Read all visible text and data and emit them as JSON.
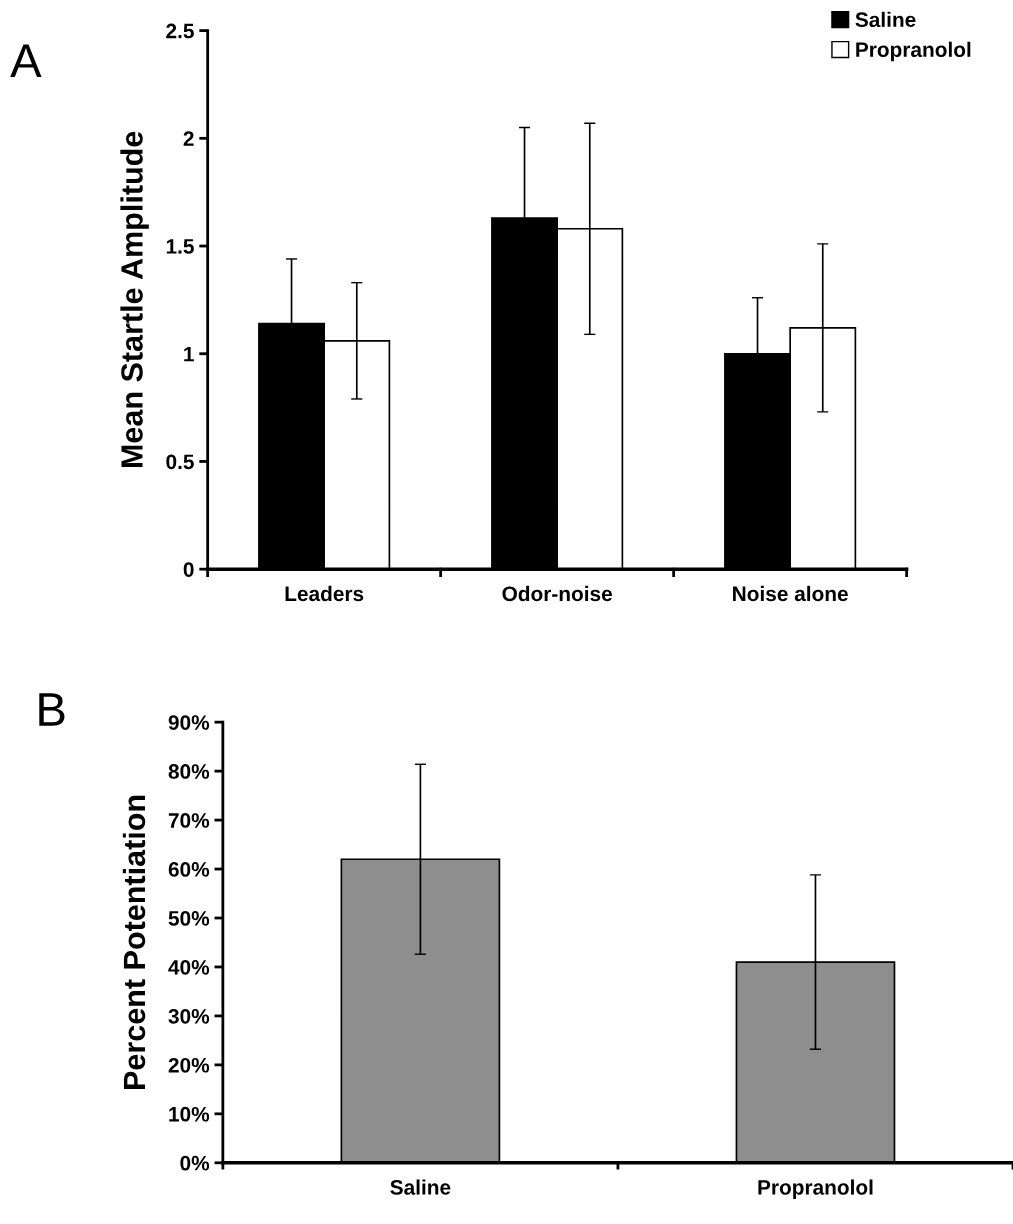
{
  "chart_data": [
    {
      "type": "bar",
      "ylabel": "Mean Startle Amplitude",
      "annotations": [
        "A"
      ],
      "categories": [
        "Leaders",
        "Odor-noise",
        "Noise alone"
      ],
      "series": [
        {
          "name": "Saline",
          "color": "#000000",
          "values": [
            1.14,
            1.63,
            1.0
          ],
          "errors": [
            0.3,
            0.42,
            0.26
          ]
        },
        {
          "name": "Propranolol",
          "color": "#ffffff",
          "values": [
            1.06,
            1.58,
            1.12
          ],
          "errors": [
            0.27,
            0.49,
            0.39
          ]
        }
      ],
      "ylim": [
        0,
        2.5
      ],
      "yticks": [
        0,
        0.5,
        1,
        1.5,
        2,
        2.5
      ],
      "grid": false,
      "legend": "top right"
    },
    {
      "type": "bar",
      "ylabel": "Percent Potentiation",
      "annotations": [
        "B"
      ],
      "categories": [
        "Saline",
        "Propranolol"
      ],
      "values": [
        62,
        41
      ],
      "errors": [
        19.4,
        17.8
      ],
      "colors": [
        "#8e8e8e",
        "#8e8e8e"
      ],
      "ylim": [
        0,
        90
      ],
      "yticks": [
        {
          "value": 0,
          "label": "0%"
        },
        {
          "value": 10,
          "label": "10%"
        },
        {
          "value": 20,
          "label": "20%"
        },
        {
          "value": 30,
          "label": "30%"
        },
        {
          "value": 40,
          "label": "40%"
        },
        {
          "value": 50,
          "label": "50%"
        },
        {
          "value": 60,
          "label": "60%"
        },
        {
          "value": 70,
          "label": "70%"
        },
        {
          "value": 80,
          "label": "80%"
        },
        {
          "value": 90,
          "label": "90%"
        }
      ],
      "grid": false,
      "legend": false
    }
  ]
}
